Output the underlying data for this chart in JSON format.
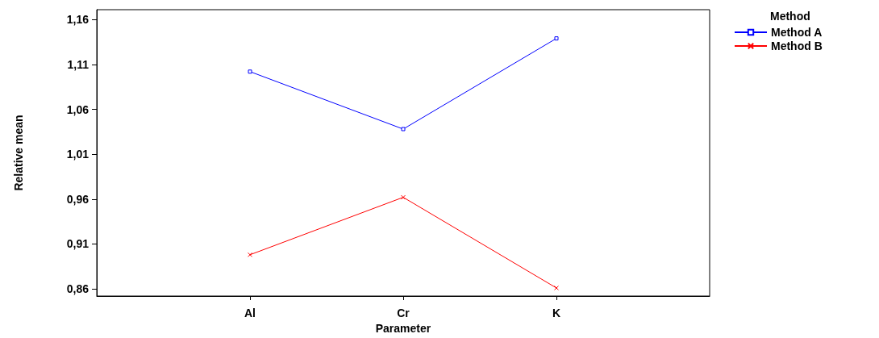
{
  "chart_data": {
    "type": "line",
    "xlabel": "Parameter",
    "ylabel": "Relative mean",
    "legend_title": "Method",
    "categories": [
      "Al",
      "Cr",
      "K"
    ],
    "series": [
      {
        "name": "Method A",
        "color": "#0000ff",
        "marker": "square",
        "values": [
          1.102,
          1.038,
          1.139
        ]
      },
      {
        "name": "Method B",
        "color": "#ff0000",
        "marker": "cross",
        "values": [
          0.898,
          0.962,
          0.861
        ]
      }
    ],
    "ylim": [
      0.852,
      1.171
    ],
    "yticks": [
      {
        "value": 0.86,
        "label": "0,86"
      },
      {
        "value": 0.91,
        "label": "0,91"
      },
      {
        "value": 0.96,
        "label": "0,96"
      },
      {
        "value": 1.01,
        "label": "1,01"
      },
      {
        "value": 1.06,
        "label": "1,06"
      },
      {
        "value": 1.11,
        "label": "1,11"
      },
      {
        "value": 1.16,
        "label": "1,16"
      }
    ],
    "grid": false,
    "legend": "right",
    "line_style": "solid"
  }
}
